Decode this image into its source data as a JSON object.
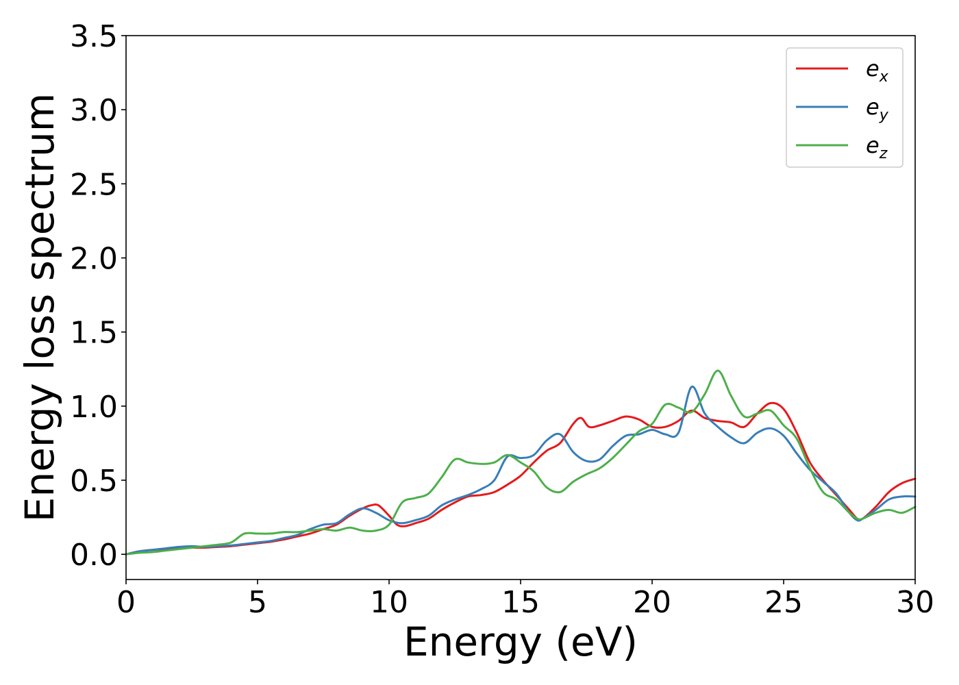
{
  "chart_data": {
    "type": "line",
    "title": "",
    "xlabel": "Energy (eV)",
    "ylabel": "Energy loss spectrum",
    "xlim": [
      0,
      30
    ],
    "ylim": [
      -0.17,
      3.5
    ],
    "xticks": [
      0,
      5,
      10,
      15,
      20,
      25,
      30
    ],
    "xtick_labels": [
      "0",
      "5",
      "10",
      "15",
      "20",
      "25",
      "30"
    ],
    "yticks": [
      0.0,
      0.5,
      1.0,
      1.5,
      2.0,
      2.5,
      3.0,
      3.5
    ],
    "ytick_labels": [
      "0.0",
      "0.5",
      "1.0",
      "1.5",
      "2.0",
      "2.5",
      "3.0",
      "3.5"
    ],
    "grid": false,
    "legend_position": "top-right",
    "series": [
      {
        "name": "e",
        "subscript": "x",
        "color": "#e41a1c",
        "x": [
          0,
          0.5,
          1,
          1.5,
          2,
          2.5,
          3,
          3.5,
          4,
          4.5,
          5,
          5.5,
          6,
          6.5,
          7,
          7.5,
          8,
          8.5,
          9,
          9.3,
          9.6,
          10,
          10.3,
          10.6,
          11,
          11.5,
          12,
          12.5,
          13,
          13.5,
          14,
          14.5,
          15,
          15.5,
          16,
          16.5,
          17,
          17.3,
          17.6,
          18,
          18.5,
          19,
          19.5,
          20,
          20.5,
          21,
          21.5,
          22,
          22.5,
          23,
          23.5,
          24,
          24.5,
          25,
          25.5,
          26,
          26.5,
          27,
          27.5,
          27.8,
          28,
          28.5,
          29,
          29.5,
          30
        ],
        "y": [
          0.0,
          0.02,
          0.03,
          0.035,
          0.04,
          0.045,
          0.045,
          0.05,
          0.055,
          0.065,
          0.075,
          0.085,
          0.1,
          0.12,
          0.14,
          0.17,
          0.2,
          0.26,
          0.31,
          0.33,
          0.33,
          0.26,
          0.2,
          0.19,
          0.21,
          0.24,
          0.3,
          0.35,
          0.39,
          0.4,
          0.42,
          0.47,
          0.53,
          0.62,
          0.7,
          0.75,
          0.88,
          0.92,
          0.86,
          0.87,
          0.9,
          0.93,
          0.91,
          0.86,
          0.86,
          0.9,
          0.97,
          0.92,
          0.9,
          0.89,
          0.86,
          0.95,
          1.02,
          0.98,
          0.82,
          0.62,
          0.5,
          0.4,
          0.3,
          0.24,
          0.24,
          0.32,
          0.42,
          0.48,
          0.51
        ]
      },
      {
        "name": "e",
        "subscript": "y",
        "color": "#377eb8",
        "x": [
          0,
          0.5,
          1,
          1.5,
          2,
          2.5,
          3,
          3.5,
          4,
          4.5,
          5,
          5.5,
          6,
          6.5,
          7,
          7.5,
          8,
          8.5,
          9,
          9.5,
          10,
          10.5,
          11,
          11.5,
          12,
          12.5,
          13,
          13.5,
          14,
          14.5,
          15,
          15.5,
          16,
          16.5,
          17,
          17.5,
          18,
          18.5,
          19,
          19.5,
          20,
          20.5,
          21,
          21.5,
          22,
          22.5,
          23,
          23.5,
          24,
          24.5,
          25,
          25.5,
          26,
          26.5,
          27,
          27.5,
          27.8,
          28,
          28.5,
          29,
          29.5,
          30
        ],
        "y": [
          0.0,
          0.02,
          0.03,
          0.04,
          0.05,
          0.055,
          0.05,
          0.055,
          0.06,
          0.07,
          0.08,
          0.09,
          0.11,
          0.13,
          0.17,
          0.2,
          0.21,
          0.27,
          0.31,
          0.28,
          0.23,
          0.21,
          0.23,
          0.26,
          0.33,
          0.37,
          0.4,
          0.44,
          0.5,
          0.66,
          0.65,
          0.67,
          0.77,
          0.81,
          0.69,
          0.63,
          0.64,
          0.73,
          0.8,
          0.81,
          0.84,
          0.81,
          0.82,
          1.13,
          0.95,
          0.86,
          0.79,
          0.75,
          0.82,
          0.85,
          0.8,
          0.68,
          0.57,
          0.49,
          0.41,
          0.28,
          0.23,
          0.24,
          0.3,
          0.37,
          0.39,
          0.39
        ]
      },
      {
        "name": "e",
        "subscript": "z",
        "color": "#4daf4a",
        "x": [
          0,
          0.5,
          1,
          1.5,
          2,
          2.5,
          3,
          3.5,
          4,
          4.5,
          5,
          5.5,
          6,
          6.5,
          7,
          7.5,
          8,
          8.5,
          9,
          9.5,
          10,
          10.5,
          11,
          11.5,
          12,
          12.5,
          13,
          13.5,
          14,
          14.5,
          15,
          15.5,
          16,
          16.5,
          17,
          17.5,
          18,
          18.5,
          19,
          19.5,
          20,
          20.5,
          21,
          21.5,
          22,
          22.5,
          23,
          23.5,
          24,
          24.5,
          25,
          25.5,
          26,
          26.5,
          27,
          27.5,
          27.8,
          28,
          28.5,
          29,
          29.5,
          30
        ],
        "y": [
          0.0,
          0.01,
          0.015,
          0.025,
          0.035,
          0.045,
          0.055,
          0.065,
          0.08,
          0.14,
          0.14,
          0.14,
          0.15,
          0.15,
          0.16,
          0.17,
          0.16,
          0.18,
          0.16,
          0.16,
          0.2,
          0.35,
          0.38,
          0.41,
          0.52,
          0.64,
          0.62,
          0.61,
          0.62,
          0.67,
          0.62,
          0.56,
          0.45,
          0.42,
          0.49,
          0.54,
          0.58,
          0.65,
          0.74,
          0.83,
          0.88,
          1.01,
          0.99,
          0.96,
          1.08,
          1.24,
          1.07,
          0.93,
          0.95,
          0.97,
          0.87,
          0.78,
          0.58,
          0.42,
          0.37,
          0.28,
          0.24,
          0.24,
          0.28,
          0.3,
          0.28,
          0.32
        ]
      }
    ]
  }
}
